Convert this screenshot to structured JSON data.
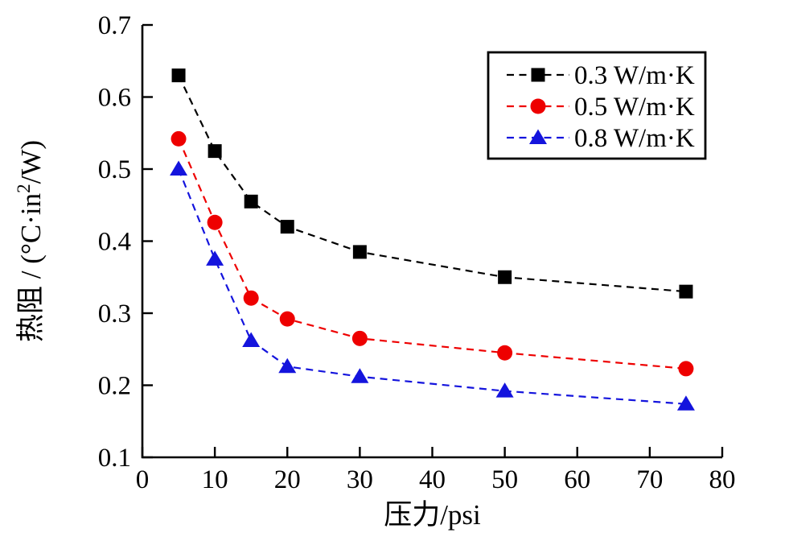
{
  "figure": {
    "background": "#ffffff",
    "axis_color": "#000000"
  },
  "chart_data": {
    "type": "line",
    "title": "",
    "xlabel": "压力/psi",
    "ylabel": {
      "prefix": "热阻 / (°C·in",
      "sup": "2",
      "suffix": "/W)"
    },
    "xlim": [
      0,
      80
    ],
    "ylim": [
      0.1,
      0.7
    ],
    "xticks": [
      0,
      10,
      20,
      30,
      40,
      50,
      60,
      70,
      80
    ],
    "yticks": [
      0.1,
      0.2,
      0.3,
      0.4,
      0.5,
      0.6,
      0.7
    ],
    "grid": false,
    "line_style": "dashed",
    "x": [
      5,
      10,
      15,
      20,
      30,
      50,
      75
    ],
    "series": [
      {
        "name": "0.3 W/m·K",
        "color": "#000000",
        "marker": "square",
        "values": [
          0.63,
          0.525,
          0.455,
          0.42,
          0.385,
          0.35,
          0.33
        ]
      },
      {
        "name": "0.5 W/m·K",
        "color": "#ee0000",
        "marker": "circle",
        "values": [
          0.542,
          0.426,
          0.321,
          0.292,
          0.265,
          0.245,
          0.223
        ]
      },
      {
        "name": "0.8 W/m·K",
        "color": "#1414dd",
        "marker": "triangle",
        "values": [
          0.5,
          0.375,
          0.262,
          0.226,
          0.212,
          0.192,
          0.174
        ]
      }
    ],
    "legend": {
      "position": "upper right",
      "border_color": "#000000",
      "background": "#ffffff",
      "entries": [
        "0.3 W/m·K",
        "0.5 W/m·K",
        "0.8 W/m·K"
      ]
    }
  }
}
